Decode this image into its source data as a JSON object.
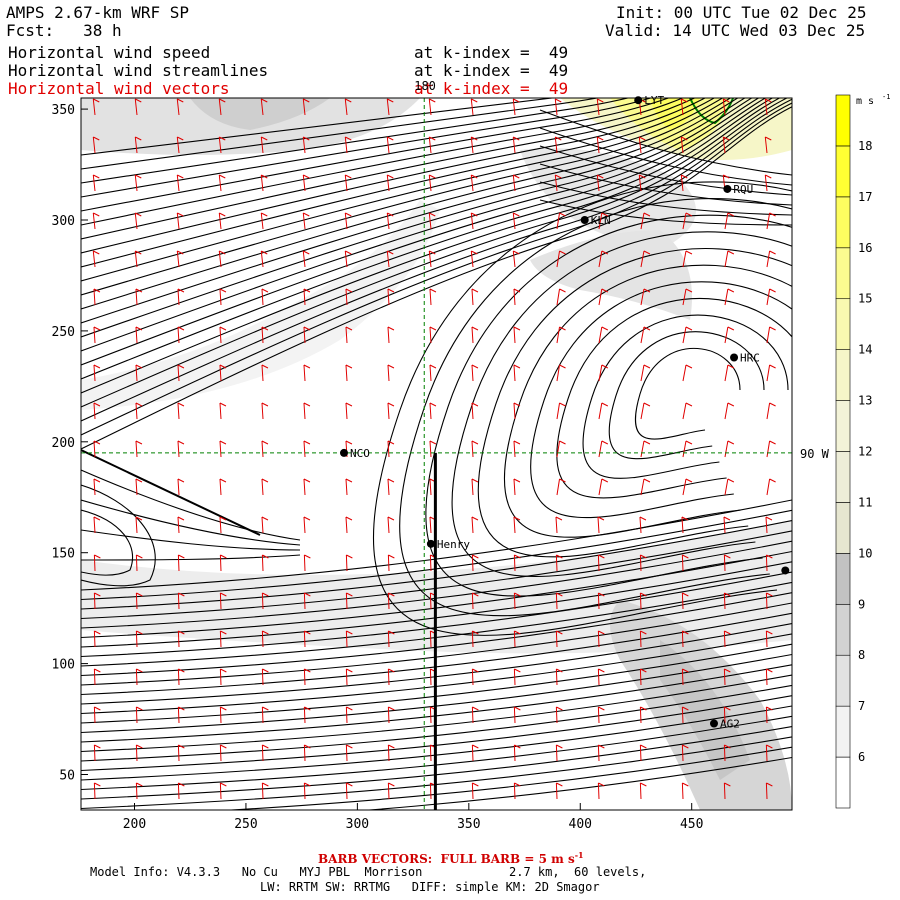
{
  "header": {
    "title": "AMPS 2.67-km WRF SP",
    "forecast": "Fcst:   38 h",
    "init": "Init: 00 UTC Tue 02 Dec 25",
    "valid": "Valid: 14 UTC Wed 03 Dec 25",
    "fields": [
      {
        "name": "Horizontal wind speed",
        "level": "at k-index =  49",
        "color": "#000000"
      },
      {
        "name": "Horizontal wind streamlines",
        "level": "at k-index =  49",
        "color": "#000000"
      },
      {
        "name": "Horizontal wind vectors",
        "level": "at k-index =  49",
        "color": "#e00000"
      }
    ]
  },
  "footer": {
    "barb_note_pre": "BARB VECTORS:  FULL BARB = 5 m s",
    "barb_note_exp": "-1",
    "model_info": "Model Info: V4.3.3   No Cu   MYJ PBL  Morrison            2.7 km,  60 levels,",
    "physics": "LW: RRTM SW: RRTMG   DIFF: simple KM: 2D Smagor"
  },
  "chart_data": {
    "type": "heatmap",
    "description_kind": "wind speed shading with streamlines and wind barbs",
    "x_ticks": [
      200,
      250,
      300,
      350,
      400,
      450
    ],
    "y_ticks": [
      50,
      100,
      150,
      200,
      250,
      300,
      350
    ],
    "xlim": [
      176,
      495
    ],
    "ylim": [
      34,
      355
    ],
    "colorbar": {
      "unit_label": "m s",
      "unit_exp": "-1",
      "ticks": [
        6,
        7,
        8,
        9,
        10,
        11,
        12,
        13,
        14,
        15,
        16,
        17,
        18
      ],
      "colors": [
        "#ffffff",
        "#f2f2f2",
        "#e2e2e2",
        "#d2d2d2",
        "#c2c2c2",
        "#e6e6d0",
        "#ededd8",
        "#f3f3d8",
        "#f6f6c8",
        "#f9f9b0",
        "#fbfb90",
        "#fdfd60",
        "#ffff33",
        "#ffff00"
      ]
    },
    "grid_lines": {
      "x": 330,
      "y": 195,
      "x_label": "180",
      "y_label": "90 W",
      "color": "#008000"
    },
    "stations": [
      {
        "name": "NCO",
        "x": 294,
        "y": 195
      },
      {
        "name": "Henry",
        "x": 333,
        "y": 154
      },
      {
        "name": "KLN",
        "x": 402,
        "y": 300
      },
      {
        "name": "RQU",
        "x": 466,
        "y": 314
      },
      {
        "name": "HRC",
        "x": 469,
        "y": 238
      },
      {
        "name": "AG2",
        "x": 460,
        "y": 73
      },
      {
        "name": "LYT",
        "x": 426,
        "y": 354
      },
      {
        "name": "",
        "x": 492,
        "y": 142
      }
    ],
    "transect": {
      "x": 335,
      "y_from": 34,
      "y_to": 195
    }
  }
}
